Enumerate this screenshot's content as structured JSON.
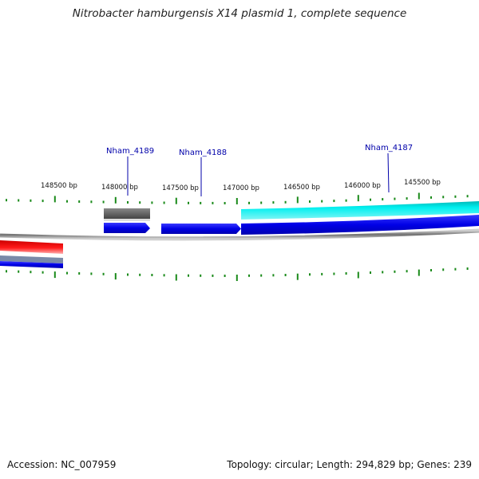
{
  "title": "Nitrobacter hamburgensis X14 plasmid 1, complete sequence",
  "footer": {
    "accession": "Accession: NC_007959",
    "summary": "Topology: circular; Length: 294,829 bp; Genes: 239"
  },
  "colors": {
    "backbone": "#888888",
    "tick": "#1a8a1a",
    "label": "#0000aa",
    "forward_blue": "#0000ee",
    "cyan": "#00e5e5",
    "gray": "#666666",
    "red": "#ee0000"
  },
  "scale_labels": [
    "148500 bp",
    "148000 bp",
    "147500 bp",
    "147000 bp",
    "146500 bp",
    "146000 bp",
    "145500 bp"
  ],
  "gene_labels": [
    "Nham_4189",
    "Nham_4188",
    "Nham_4187"
  ]
}
